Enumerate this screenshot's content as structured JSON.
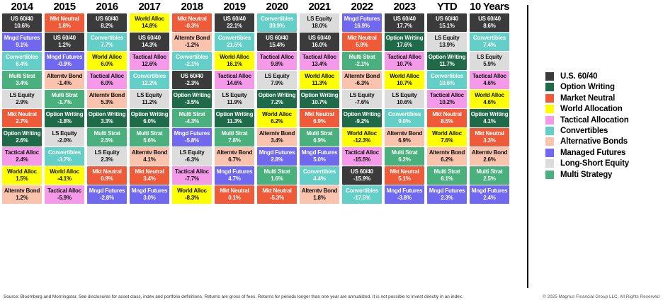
{
  "asset_classes": {
    "us6040": {
      "label": "US 60/40",
      "color": "#3b3b3b",
      "text": "#ffffff"
    },
    "option_writing": {
      "label": "Option Writing",
      "color": "#1f6a48",
      "text": "#ffffff"
    },
    "mkt_neutral": {
      "label": "Mkt Neutral",
      "color": "#ef5b39",
      "text": "#ffffff"
    },
    "world_alloc": {
      "label": "World Alloc",
      "color": "#ffff00",
      "text": "#111111"
    },
    "tactical_alloc": {
      "label": "Tactical Alloc",
      "color": "#f59ae9",
      "text": "#111111"
    },
    "convertibles": {
      "label": "Convertibles",
      "color": "#63cfc6",
      "text": "#ffffff"
    },
    "alterntv_bond": {
      "label": "Alterntv Bond",
      "color": "#f9c3ae",
      "text": "#111111"
    },
    "mngd_futures": {
      "label": "Mngd Futures",
      "color": "#7168f0",
      "text": "#ffffff"
    },
    "ls_equity": {
      "label": "LS Equity",
      "color": "#dcdcdc",
      "text": "#111111"
    },
    "multi_strat": {
      "label": "Multi Strat",
      "color": "#4ab07e",
      "text": "#ffffff"
    }
  },
  "chart_data": {
    "type": "table",
    "columns": [
      {
        "label": "2014",
        "cells": [
          [
            "us6040",
            "10.6%"
          ],
          [
            "mngd_futures",
            "9.1%"
          ],
          [
            "convertibles",
            "6.4%"
          ],
          [
            "multi_strat",
            "3.4%"
          ],
          [
            "ls_equity",
            "2.9%"
          ],
          [
            "mkt_neutral",
            "2.7%"
          ],
          [
            "option_writing",
            "2.6%"
          ],
          [
            "tactical_alloc",
            "2.4%"
          ],
          [
            "world_alloc",
            "1.5%"
          ],
          [
            "alterntv_bond",
            "1.2%"
          ]
        ]
      },
      {
        "label": "2015",
        "cells": [
          [
            "mkt_neutral",
            "1.8%"
          ],
          [
            "us6040",
            "1.2%"
          ],
          [
            "mngd_futures",
            "-0.9%"
          ],
          [
            "alterntv_bond",
            "-1.4%"
          ],
          [
            "multi_strat",
            "-1.7%"
          ],
          [
            "option_writing",
            "-1.8%"
          ],
          [
            "ls_equity",
            "-2.0%"
          ],
          [
            "convertibles",
            "-3.7%"
          ],
          [
            "world_alloc",
            "-4.1%"
          ],
          [
            "tactical_alloc",
            "-5.9%"
          ]
        ]
      },
      {
        "label": "2016",
        "cells": [
          [
            "us6040",
            "8.2%"
          ],
          [
            "convertibles",
            "7.7%"
          ],
          [
            "world_alloc",
            "6.0%"
          ],
          [
            "tactical_alloc",
            "6.0%"
          ],
          [
            "alterntv_bond",
            "5.3%"
          ],
          [
            "option_writing",
            "3.3%"
          ],
          [
            "multi_strat",
            "2.5%"
          ],
          [
            "ls_equity",
            "2.3%"
          ],
          [
            "mkt_neutral",
            "0.9%"
          ],
          [
            "mngd_futures",
            "-2.8%"
          ]
        ]
      },
      {
        "label": "2017",
        "cells": [
          [
            "world_alloc",
            "14.8%"
          ],
          [
            "us6040",
            "14.3%"
          ],
          [
            "tactical_alloc",
            "12.6%"
          ],
          [
            "convertibles",
            "12.2%"
          ],
          [
            "ls_equity",
            "11.2%"
          ],
          [
            "option_writing",
            "6.0%"
          ],
          [
            "multi_strat",
            "5.6%"
          ],
          [
            "alterntv_bond",
            "4.1%"
          ],
          [
            "mkt_neutral",
            "3.4%"
          ],
          [
            "mngd_futures",
            "3.0%"
          ]
        ]
      },
      {
        "label": "2018",
        "cells": [
          [
            "mkt_neutral",
            "-0.3%"
          ],
          [
            "alterntv_bond",
            "-1.2%"
          ],
          [
            "convertibles",
            "-2.1%"
          ],
          [
            "us6040",
            "-2.3%"
          ],
          [
            "option_writing",
            "-3.5%"
          ],
          [
            "multi_strat",
            "-4.3%"
          ],
          [
            "mngd_futures",
            "-5.8%"
          ],
          [
            "ls_equity",
            "-6.3%"
          ],
          [
            "tactical_alloc",
            "-7.7%"
          ],
          [
            "world_alloc",
            "-8.3%"
          ]
        ]
      },
      {
        "label": "2019",
        "cells": [
          [
            "us6040",
            "22.1%"
          ],
          [
            "convertibles",
            "21.5%"
          ],
          [
            "world_alloc",
            "16.1%"
          ],
          [
            "tactical_alloc",
            "14.6%"
          ],
          [
            "ls_equity",
            "11.9%"
          ],
          [
            "option_writing",
            "11.3%"
          ],
          [
            "multi_strat",
            "7.8%"
          ],
          [
            "alterntv_bond",
            "6.7%"
          ],
          [
            "mngd_futures",
            "4.7%"
          ],
          [
            "mkt_neutral",
            "0.1%"
          ]
        ]
      },
      {
        "label": "2020",
        "cells": [
          [
            "convertibles",
            "39.9%"
          ],
          [
            "us6040",
            "15.4%"
          ],
          [
            "tactical_alloc",
            "9.8%"
          ],
          [
            "ls_equity",
            "7.9%"
          ],
          [
            "option_writing",
            "7.2%"
          ],
          [
            "world_alloc",
            "6.2%"
          ],
          [
            "alterntv_bond",
            "3.4%"
          ],
          [
            "mngd_futures",
            "2.8%"
          ],
          [
            "multi_strat",
            "1.6%"
          ],
          [
            "mkt_neutral",
            "-5.3%"
          ]
        ]
      },
      {
        "label": "2021",
        "cells": [
          [
            "ls_equity",
            "18.0%"
          ],
          [
            "us6040",
            "16.0%"
          ],
          [
            "tactical_alloc",
            "13.4%"
          ],
          [
            "world_alloc",
            "11.3%"
          ],
          [
            "option_writing",
            "10.7%"
          ],
          [
            "mkt_neutral",
            "6.9%"
          ],
          [
            "multi_strat",
            "6.9%"
          ],
          [
            "mngd_futures",
            "5.0%"
          ],
          [
            "convertibles",
            "4.4%"
          ],
          [
            "alterntv_bond",
            "1.8%"
          ]
        ]
      },
      {
        "label": "2022",
        "cells": [
          [
            "mngd_futures",
            "16.9%"
          ],
          [
            "mkt_neutral",
            "5.9%"
          ],
          [
            "multi_strat",
            "-2.1%"
          ],
          [
            "alterntv_bond",
            "-6.3%"
          ],
          [
            "ls_equity",
            "-7.6%"
          ],
          [
            "option_writing",
            "-9.2%"
          ],
          [
            "world_alloc",
            "-12.3%"
          ],
          [
            "tactical_alloc",
            "-15.5%"
          ],
          [
            "us6040",
            "-15.9%"
          ],
          [
            "convertibles",
            "-17.5%"
          ]
        ]
      },
      {
        "label": "2023",
        "cells": [
          [
            "us6040",
            "17.7%"
          ],
          [
            "option_writing",
            "17.6%"
          ],
          [
            "tactical_alloc",
            "10.7%"
          ],
          [
            "world_alloc",
            "10.7%"
          ],
          [
            "ls_equity",
            "10.6%"
          ],
          [
            "convertibles",
            "9.0%"
          ],
          [
            "alterntv_bond",
            "6.9%"
          ],
          [
            "multi_strat",
            "6.2%"
          ],
          [
            "mkt_neutral",
            "5.1%"
          ],
          [
            "mngd_futures",
            "-3.8%"
          ]
        ]
      },
      {
        "label": "YTD",
        "cells": [
          [
            "us6040",
            "15.1%"
          ],
          [
            "ls_equity",
            "13.9%"
          ],
          [
            "option_writing",
            "11.7%"
          ],
          [
            "convertibles",
            "10.6%"
          ],
          [
            "tactical_alloc",
            "10.2%"
          ],
          [
            "mkt_neutral",
            "8.5%"
          ],
          [
            "world_alloc",
            "7.6%"
          ],
          [
            "alterntv_bond",
            "6.2%"
          ],
          [
            "multi_strat",
            "6.1%"
          ],
          [
            "mngd_futures",
            "2.3%"
          ]
        ]
      },
      {
        "label": "10 Years",
        "cells": [
          [
            "us6040",
            "8.6%"
          ],
          [
            "convertibles",
            "7.4%"
          ],
          [
            "ls_equity",
            "5.9%"
          ],
          [
            "tactical_alloc",
            "4.6%"
          ],
          [
            "world_alloc",
            "4.6%"
          ],
          [
            "option_writing",
            "4.1%"
          ],
          [
            "mkt_neutral",
            "3.3%"
          ],
          [
            "alterntv_bond",
            "2.6%"
          ],
          [
            "multi_strat",
            "2.5%"
          ],
          [
            "mngd_futures",
            "2.4%"
          ]
        ]
      }
    ]
  },
  "legend": {
    "items": [
      {
        "asset": "us6040",
        "label": "U.S. 60/40"
      },
      {
        "asset": "option_writing",
        "label": "Option Writing"
      },
      {
        "asset": "mkt_neutral",
        "label": "Market Neutral"
      },
      {
        "asset": "world_alloc",
        "label": "World Allocation"
      },
      {
        "asset": "tactical_alloc",
        "label": "Tactical Allocation"
      },
      {
        "asset": "convertibles",
        "label": "Convertibles"
      },
      {
        "asset": "alterntv_bond",
        "label": "Alternative Bonds"
      },
      {
        "asset": "mngd_futures",
        "label": "Managed Futures"
      },
      {
        "asset": "ls_equity",
        "label": "Long-Short Equity"
      },
      {
        "asset": "multi_strat",
        "label": "Multi Strategy"
      }
    ]
  },
  "footer": {
    "source": "Source: Bloomberg and Morningstar. See disclosures for asset class, index and portfolio definitions. Returns are gross of fees. Returns for periods longer than one year are annualized. It is not possible to invest directly in an index.",
    "copyright": "© 2025 Magnus Financial Group LLC. All Rights Reserved"
  }
}
